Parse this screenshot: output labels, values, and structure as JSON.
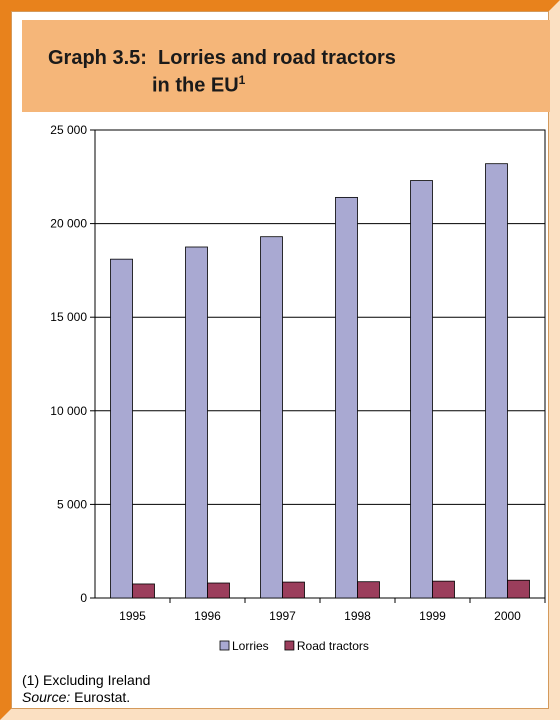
{
  "title": {
    "prefix": "Graph 3.5:",
    "line1": "Lorries and road tractors",
    "line2": "in the EU",
    "superscript": "1"
  },
  "footnote": "(1) Excluding Ireland",
  "source": {
    "label": "Source:",
    "text": "Eurostat."
  },
  "colors": {
    "lorries": "#a9a9d2",
    "road_tractors": "#9b3e5c",
    "title_bg": "#f5b679",
    "frame": "#e8821c"
  },
  "chart_data": {
    "type": "bar",
    "categories": [
      "1995",
      "1996",
      "1997",
      "1998",
      "1999",
      "2000"
    ],
    "series": [
      {
        "name": "Lorries",
        "values": [
          18100,
          18750,
          19300,
          21400,
          22300,
          23200
        ]
      },
      {
        "name": "Road tractors",
        "values": [
          750,
          800,
          850,
          870,
          900,
          950
        ]
      }
    ],
    "ylim": [
      0,
      25000
    ],
    "yticks": [
      0,
      5000,
      10000,
      15000,
      20000,
      25000
    ],
    "ytick_labels": [
      "0",
      "5 000",
      "10 000",
      "15 000",
      "20 000",
      "25 000"
    ],
    "grid": true,
    "legend_position": "bottom"
  }
}
